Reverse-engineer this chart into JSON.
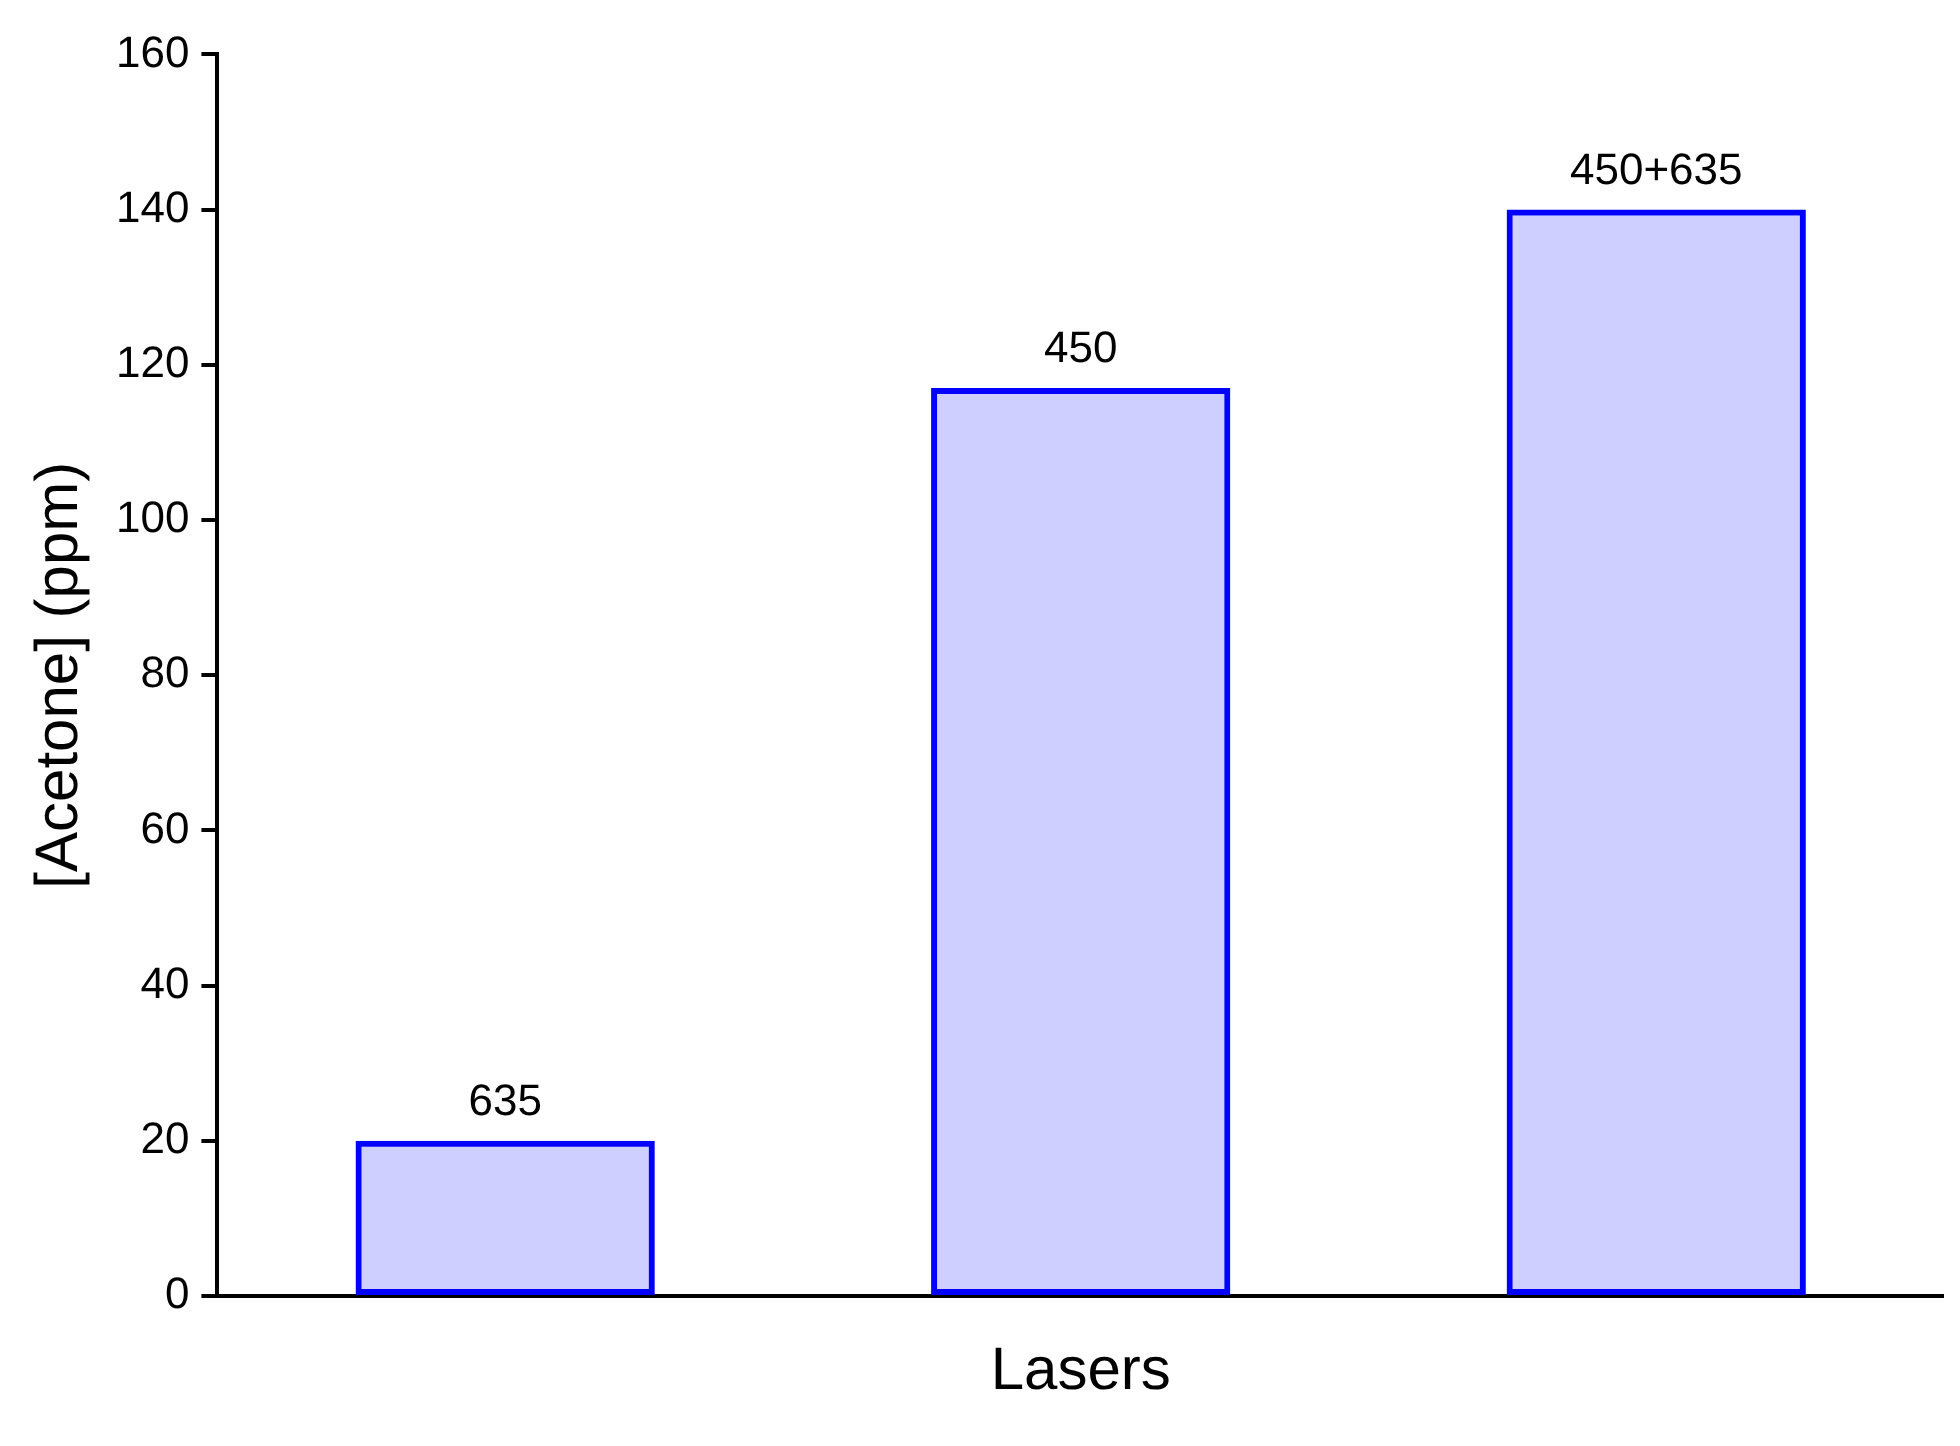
{
  "chart_data": {
    "type": "bar",
    "xlabel": "Lasers",
    "ylabel": "[Acetone] (ppm)",
    "categories": [
      "635",
      "450",
      "450+635"
    ],
    "values": [
      20,
      117,
      140
    ],
    "color": "#0000ff",
    "ylim": [
      0,
      160
    ],
    "yticks": [
      0,
      20,
      40,
      60,
      80,
      100,
      120,
      140,
      160
    ],
    "grid": false,
    "tick_labels": "y"
  }
}
